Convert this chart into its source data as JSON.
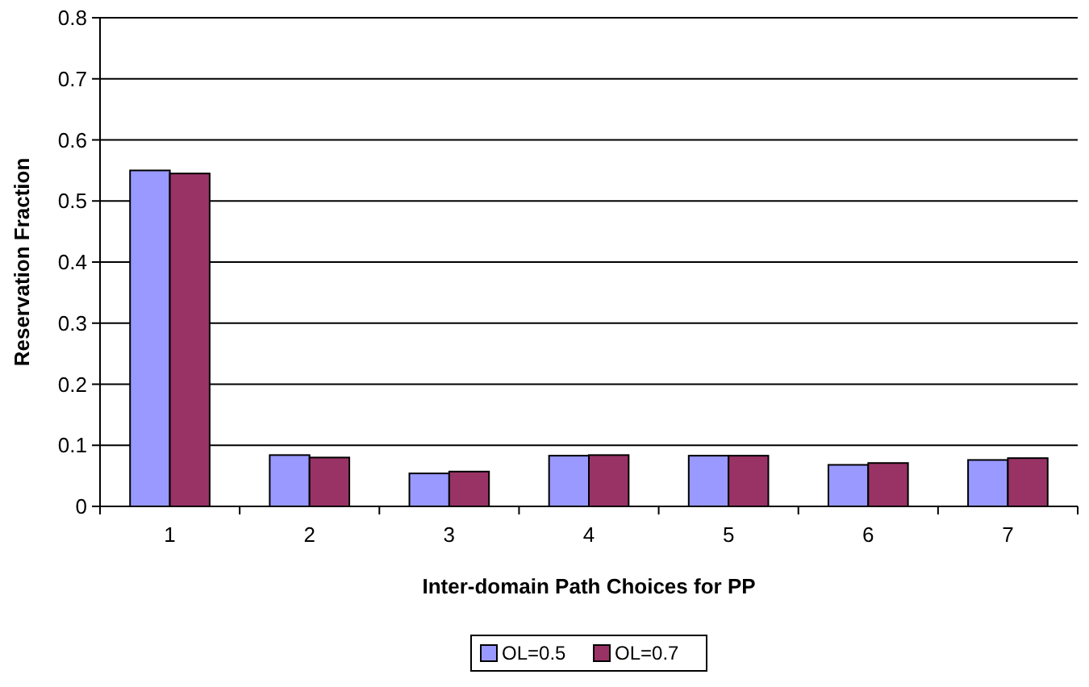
{
  "chart_data": {
    "type": "bar",
    "xlabel": "Inter-domain Path Choices for PP",
    "ylabel": "Reservation Fraction",
    "categories": [
      "1",
      "2",
      "3",
      "4",
      "5",
      "6",
      "7"
    ],
    "series": [
      {
        "name": "OL=0.5",
        "color": "#9999ff",
        "values": [
          0.55,
          0.084,
          0.054,
          0.083,
          0.083,
          0.068,
          0.076
        ]
      },
      {
        "name": "OL=0.7",
        "color": "#993366",
        "values": [
          0.545,
          0.08,
          0.057,
          0.084,
          0.083,
          0.071,
          0.079
        ]
      }
    ],
    "ylim": [
      0,
      0.8
    ],
    "yticks": [
      0,
      {
        "value": 0.1,
        "label": "0.1"
      },
      {
        "value": 0.2,
        "label": "0.2"
      },
      {
        "value": 0.3,
        "label": "0.3"
      },
      {
        "value": 0.4,
        "label": "0.4"
      },
      {
        "value": 0.5,
        "label": "0.5"
      },
      {
        "value": 0.6,
        "label": "0.6"
      },
      {
        "value": 0.7,
        "label": "0.7"
      },
      {
        "value": 0.8,
        "label": "0.8"
      }
    ],
    "grid": "y",
    "legend": "bottom"
  }
}
